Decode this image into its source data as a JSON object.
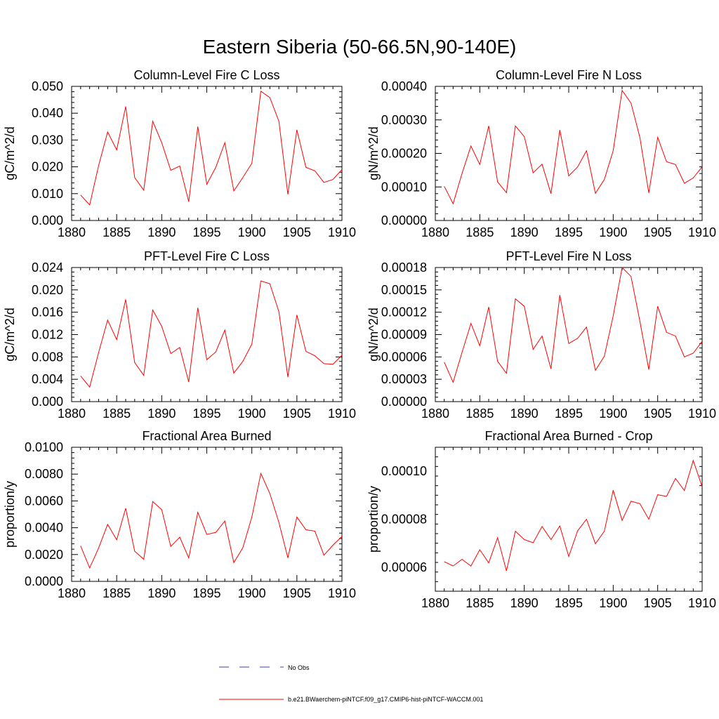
{
  "figure": {
    "title": "Eastern Siberia (50-66.5N,90-140E)"
  },
  "legend": {
    "items": [
      {
        "label": "No Obs",
        "color": "#3b3bbf",
        "dash": true
      },
      {
        "label": "b.e21.BWaerchem-piNTCF.f09_g17.CMIP6-hist-piNTCF-WACCM.001",
        "color": "#ff0000",
        "dash": false
      }
    ]
  },
  "chart_data": [
    {
      "type": "line",
      "title": "Column-Level Fire C Loss",
      "ylabel": "gC/m^2/d",
      "xlim": [
        1880,
        1910
      ],
      "ylim": [
        0,
        0.05
      ],
      "xticks": [
        1880,
        1885,
        1890,
        1895,
        1900,
        1905,
        1910
      ],
      "yticks": [
        0,
        0.01,
        0.02,
        0.03,
        0.04,
        0.05
      ],
      "ytick_labels": [
        "0.000",
        "0.010",
        "0.020",
        "0.030",
        "0.040",
        "0.050"
      ],
      "x": [
        1881,
        1882,
        1883,
        1884,
        1885,
        1886,
        1887,
        1888,
        1889,
        1890,
        1891,
        1892,
        1893,
        1894,
        1895,
        1896,
        1897,
        1898,
        1899,
        1900,
        1901,
        1902,
        1903,
        1904,
        1905,
        1906,
        1907,
        1908,
        1909,
        1910
      ],
      "series": [
        {
          "color": "#ff0000",
          "values": [
            0.0095,
            0.0058,
            0.0205,
            0.033,
            0.0263,
            0.0425,
            0.016,
            0.0113,
            0.037,
            0.029,
            0.0187,
            0.0203,
            0.007,
            0.035,
            0.0135,
            0.0198,
            0.029,
            0.011,
            0.016,
            0.0213,
            0.0482,
            0.0458,
            0.037,
            0.0097,
            0.0338,
            0.0198,
            0.0185,
            0.0142,
            0.0153,
            0.019
          ]
        }
      ]
    },
    {
      "type": "line",
      "title": "Column-Level Fire N Loss",
      "ylabel": "gN/m^2/d",
      "xlim": [
        1880,
        1910
      ],
      "ylim": [
        0,
        0.0004
      ],
      "xticks": [
        1880,
        1885,
        1890,
        1895,
        1900,
        1905,
        1910
      ],
      "yticks": [
        0,
        0.0001,
        0.0002,
        0.0003,
        0.0004
      ],
      "ytick_labels": [
        "0.00000",
        "0.00010",
        "0.00020",
        "0.00030",
        "0.00040"
      ],
      "x": [
        1881,
        1882,
        1883,
        1884,
        1885,
        1886,
        1887,
        1888,
        1889,
        1890,
        1891,
        1892,
        1893,
        1894,
        1895,
        1896,
        1897,
        1898,
        1899,
        1900,
        1901,
        1902,
        1903,
        1904,
        1905,
        1906,
        1907,
        1908,
        1909,
        1910
      ],
      "series": [
        {
          "color": "#ff0000",
          "values": [
            0.000102,
            5e-05,
            0.00014,
            0.000222,
            0.000167,
            0.000282,
            0.000115,
            8.3e-05,
            0.000282,
            0.00025,
            0.000142,
            0.000168,
            8e-05,
            0.00027,
            0.000133,
            0.00016,
            0.000208,
            8.1e-05,
            0.000122,
            0.000208,
            0.000388,
            0.00035,
            0.000248,
            8.2e-05,
            0.000248,
            0.000175,
            0.000167,
            0.000111,
            0.000127,
            0.00016
          ]
        }
      ]
    },
    {
      "type": "line",
      "title": "PFT-Level Fire C Loss",
      "ylabel": "gC/m^2/d",
      "xlim": [
        1880,
        1910
      ],
      "ylim": [
        0,
        0.024
      ],
      "xticks": [
        1880,
        1885,
        1890,
        1895,
        1900,
        1905,
        1910
      ],
      "yticks": [
        0,
        0.004,
        0.008,
        0.012,
        0.016,
        0.02,
        0.024
      ],
      "ytick_labels": [
        "0.000",
        "0.004",
        "0.008",
        "0.012",
        "0.016",
        "0.020",
        "0.024"
      ],
      "x": [
        1881,
        1882,
        1883,
        1884,
        1885,
        1886,
        1887,
        1888,
        1889,
        1890,
        1891,
        1892,
        1893,
        1894,
        1895,
        1896,
        1897,
        1898,
        1899,
        1900,
        1901,
        1902,
        1903,
        1904,
        1905,
        1906,
        1907,
        1908,
        1909,
        1910
      ],
      "series": [
        {
          "color": "#ff0000",
          "values": [
            0.0046,
            0.0026,
            0.0088,
            0.0146,
            0.0111,
            0.0183,
            0.007,
            0.0047,
            0.0164,
            0.0135,
            0.0086,
            0.0097,
            0.0035,
            0.0168,
            0.0075,
            0.0089,
            0.0128,
            0.0051,
            0.0072,
            0.0103,
            0.0216,
            0.0211,
            0.0161,
            0.0044,
            0.0155,
            0.009,
            0.0082,
            0.0068,
            0.0067,
            0.0083
          ]
        }
      ]
    },
    {
      "type": "line",
      "title": "PFT-Level Fire N Loss",
      "ylabel": "gN/m^2/d",
      "xlim": [
        1880,
        1910
      ],
      "ylim": [
        0,
        0.00018
      ],
      "xticks": [
        1880,
        1885,
        1890,
        1895,
        1900,
        1905,
        1910
      ],
      "yticks": [
        0,
        3e-05,
        6e-05,
        9e-05,
        0.00012,
        0.00015,
        0.00018
      ],
      "ytick_labels": [
        "0.00000",
        "0.00003",
        "0.00006",
        "0.00009",
        "0.00012",
        "0.00015",
        "0.00018"
      ],
      "x": [
        1881,
        1882,
        1883,
        1884,
        1885,
        1886,
        1887,
        1888,
        1889,
        1890,
        1891,
        1892,
        1893,
        1894,
        1895,
        1896,
        1897,
        1898,
        1899,
        1900,
        1901,
        1902,
        1903,
        1904,
        1905,
        1906,
        1907,
        1908,
        1909,
        1910
      ],
      "series": [
        {
          "color": "#ff0000",
          "values": [
            5.3e-05,
            2.6e-05,
            6.6e-05,
            0.000105,
            7.5e-05,
            0.000127,
            5.4e-05,
            3.8e-05,
            0.000138,
            0.000128,
            7e-05,
            8.8e-05,
            4.4e-05,
            0.000143,
            7.8e-05,
            8.5e-05,
            0.0001,
            4.2e-05,
            6.1e-05,
            0.000115,
            0.00018,
            0.000168,
            0.000108,
            4.3e-05,
            0.000128,
            9.3e-05,
            8.8e-05,
            6e-05,
            6.5e-05,
            8.1e-05
          ]
        }
      ]
    },
    {
      "type": "line",
      "title": "Fractional Area Burned",
      "ylabel": "proportion/y",
      "xlim": [
        1880,
        1910
      ],
      "ylim": [
        0,
        0.01
      ],
      "xticks": [
        1880,
        1885,
        1890,
        1895,
        1900,
        1905,
        1910
      ],
      "yticks": [
        0,
        0.002,
        0.004,
        0.006,
        0.008,
        0.01
      ],
      "ytick_labels": [
        "0.0000",
        "0.0020",
        "0.0040",
        "0.0060",
        "0.0080",
        "0.0100"
      ],
      "x": [
        1881,
        1882,
        1883,
        1884,
        1885,
        1886,
        1887,
        1888,
        1889,
        1890,
        1891,
        1892,
        1893,
        1894,
        1895,
        1896,
        1897,
        1898,
        1899,
        1900,
        1901,
        1902,
        1903,
        1904,
        1905,
        1906,
        1907,
        1908,
        1909,
        1910
      ],
      "series": [
        {
          "color": "#ff0000",
          "values": [
            0.00265,
            0.001,
            0.0025,
            0.00425,
            0.0031,
            0.00545,
            0.00225,
            0.00165,
            0.00595,
            0.00535,
            0.0026,
            0.0033,
            0.00175,
            0.00515,
            0.0035,
            0.00365,
            0.0045,
            0.0014,
            0.0025,
            0.0048,
            0.00805,
            0.00655,
            0.0044,
            0.00175,
            0.0048,
            0.00385,
            0.00375,
            0.00195,
            0.0027,
            0.00335
          ]
        }
      ]
    },
    {
      "type": "line",
      "title": "Fractional Area Burned - Crop",
      "ylabel": "proportion/y",
      "xlim": [
        1880,
        1910
      ],
      "ylim": [
        5e-05,
        0.00011
      ],
      "xticks": [
        1880,
        1885,
        1890,
        1895,
        1900,
        1905,
        1910
      ],
      "yticks": [
        6e-05,
        8e-05,
        0.0001
      ],
      "ytick_labels": [
        "0.00006",
        "0.00008",
        "0.00010"
      ],
      "x": [
        1881,
        1882,
        1883,
        1884,
        1885,
        1886,
        1887,
        1888,
        1889,
        1890,
        1891,
        1892,
        1893,
        1894,
        1895,
        1896,
        1897,
        1898,
        1899,
        1900,
        1901,
        1902,
        1903,
        1904,
        1905,
        1906,
        1907,
        1908,
        1909,
        1910
      ],
      "series": [
        {
          "color": "#ff0000",
          "values": [
            6.23e-05,
            6.05e-05,
            6.33e-05,
            6.05e-05,
            6.73e-05,
            6.18e-05,
            7.23e-05,
            5.85e-05,
            7.5e-05,
            7.15e-05,
            7.02e-05,
            7.7e-05,
            7.15e-05,
            7.72e-05,
            6.45e-05,
            7.52e-05,
            8e-05,
            6.98e-05,
            7.5e-05,
            9.21e-05,
            7.95e-05,
            8.75e-05,
            8.65e-05,
            8e-05,
            9.02e-05,
            8.95e-05,
            9.7e-05,
            9.2e-05,
            0.0001045,
            9.35e-05
          ]
        }
      ]
    }
  ]
}
